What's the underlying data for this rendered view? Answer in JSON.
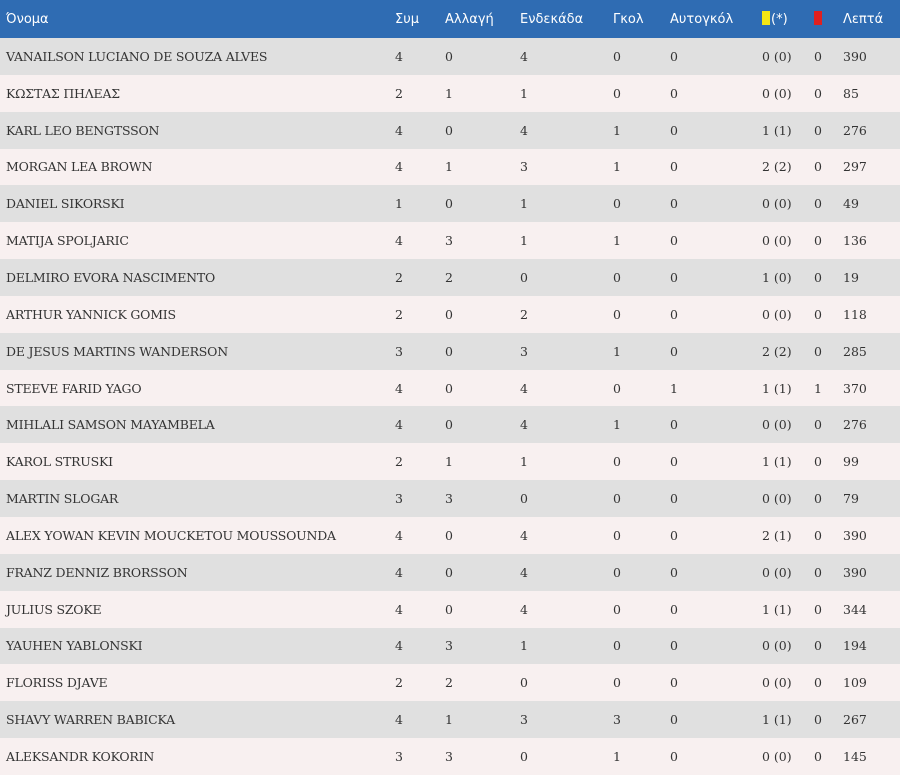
{
  "headers": {
    "name": "Όνομα",
    "apps": "Συμ",
    "subs": "Αλλαγή",
    "lineup": "Ενδεκάδα",
    "goals": "Γκολ",
    "own_goals": "Αυτογκόλ",
    "yellow": "(*)",
    "minutes": "Λεπτά"
  },
  "colors": {
    "header_bg": "#2f6cb3",
    "yellow_card": "#f5e614",
    "red_card": "#e02020"
  },
  "rows": [
    {
      "name": "VANAILSON LUCIANO DE SOUZA ALVES",
      "apps": "4",
      "subs": "0",
      "lineup": "4",
      "goals": "0",
      "own_goals": "0",
      "yellow": "0 (0)",
      "red": "0",
      "minutes": "390"
    },
    {
      "name": "ΚΩΣΤΑΣ ΠΗΛΕΑΣ",
      "apps": "2",
      "subs": "1",
      "lineup": "1",
      "goals": "0",
      "own_goals": "0",
      "yellow": "0 (0)",
      "red": "0",
      "minutes": "85"
    },
    {
      "name": "KARL LEO BENGTSSON",
      "apps": "4",
      "subs": "0",
      "lineup": "4",
      "goals": "1",
      "own_goals": "0",
      "yellow": "1 (1)",
      "red": "0",
      "minutes": "276"
    },
    {
      "name": "MORGAN LEA BROWN",
      "apps": "4",
      "subs": "1",
      "lineup": "3",
      "goals": "1",
      "own_goals": "0",
      "yellow": "2 (2)",
      "red": "0",
      "minutes": "297"
    },
    {
      "name": "DANIEL SIKORSKI",
      "apps": "1",
      "subs": "0",
      "lineup": "1",
      "goals": "0",
      "own_goals": "0",
      "yellow": "0 (0)",
      "red": "0",
      "minutes": "49"
    },
    {
      "name": "MATIJA SPOLJARIC",
      "apps": "4",
      "subs": "3",
      "lineup": "1",
      "goals": "1",
      "own_goals": "0",
      "yellow": "0 (0)",
      "red": "0",
      "minutes": "136"
    },
    {
      "name": "DELMIRO EVORA NASCIMENTO",
      "apps": "2",
      "subs": "2",
      "lineup": "0",
      "goals": "0",
      "own_goals": "0",
      "yellow": "1 (0)",
      "red": "0",
      "minutes": "19"
    },
    {
      "name": "ARTHUR YANNICK GOMIS",
      "apps": "2",
      "subs": "0",
      "lineup": "2",
      "goals": "0",
      "own_goals": "0",
      "yellow": "0 (0)",
      "red": "0",
      "minutes": "118"
    },
    {
      "name": "DE JESUS MARTINS WANDERSON",
      "apps": "3",
      "subs": "0",
      "lineup": "3",
      "goals": "1",
      "own_goals": "0",
      "yellow": "2 (2)",
      "red": "0",
      "minutes": "285"
    },
    {
      "name": "STEEVE FARID YAGO",
      "apps": "4",
      "subs": "0",
      "lineup": "4",
      "goals": "0",
      "own_goals": "1",
      "yellow": "1 (1)",
      "red": "1",
      "minutes": "370"
    },
    {
      "name": "MIHLALI SAMSON MAYAMBELA",
      "apps": "4",
      "subs": "0",
      "lineup": "4",
      "goals": "1",
      "own_goals": "0",
      "yellow": "0 (0)",
      "red": "0",
      "minutes": "276"
    },
    {
      "name": "KAROL STRUSKI",
      "apps": "2",
      "subs": "1",
      "lineup": "1",
      "goals": "0",
      "own_goals": "0",
      "yellow": "1 (1)",
      "red": "0",
      "minutes": "99"
    },
    {
      "name": "MARTIN SLOGAR",
      "apps": "3",
      "subs": "3",
      "lineup": "0",
      "goals": "0",
      "own_goals": "0",
      "yellow": "0 (0)",
      "red": "0",
      "minutes": "79"
    },
    {
      "name": "ALEX YOWAN KEVIN MOUCKETOU MOUSSOUNDA",
      "apps": "4",
      "subs": "0",
      "lineup": "4",
      "goals": "0",
      "own_goals": "0",
      "yellow": "2 (1)",
      "red": "0",
      "minutes": "390"
    },
    {
      "name": "FRANZ DENNIZ BRORSSON",
      "apps": "4",
      "subs": "0",
      "lineup": "4",
      "goals": "0",
      "own_goals": "0",
      "yellow": "0 (0)",
      "red": "0",
      "minutes": "390"
    },
    {
      "name": "JULIUS SZOKE",
      "apps": "4",
      "subs": "0",
      "lineup": "4",
      "goals": "0",
      "own_goals": "0",
      "yellow": "1 (1)",
      "red": "0",
      "minutes": "344"
    },
    {
      "name": "YAUHEN YABLONSKI",
      "apps": "4",
      "subs": "3",
      "lineup": "1",
      "goals": "0",
      "own_goals": "0",
      "yellow": "0 (0)",
      "red": "0",
      "minutes": "194"
    },
    {
      "name": "FLORISS DJAVE",
      "apps": "2",
      "subs": "2",
      "lineup": "0",
      "goals": "0",
      "own_goals": "0",
      "yellow": "0 (0)",
      "red": "0",
      "minutes": "109"
    },
    {
      "name": "SHAVY WARREN BABICKA",
      "apps": "4",
      "subs": "1",
      "lineup": "3",
      "goals": "3",
      "own_goals": "0",
      "yellow": "1 (1)",
      "red": "0",
      "minutes": "267"
    },
    {
      "name": "ALEKSANDR KOKORIN",
      "apps": "3",
      "subs": "3",
      "lineup": "0",
      "goals": "1",
      "own_goals": "0",
      "yellow": "0 (0)",
      "red": "0",
      "minutes": "145"
    }
  ]
}
